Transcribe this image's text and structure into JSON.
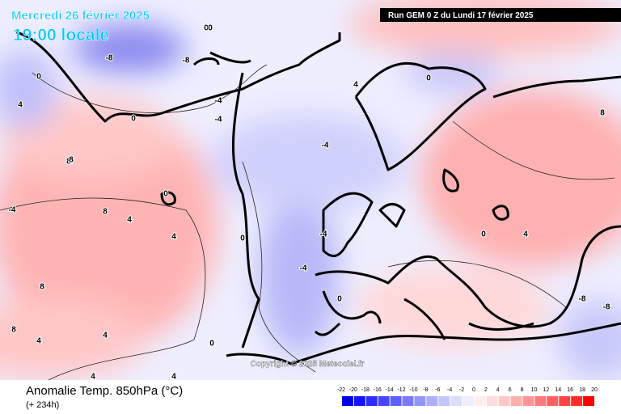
{
  "header": {
    "date": "Mercredi 26 février 2025",
    "time": "19:00 locale",
    "run": "Run GEM 0 Z du Lundi 17 février 2025"
  },
  "copyright": "Copyright © 2025 Meteociel.fr",
  "footer": {
    "title": "Anomalie Temp. 850hPa (°C)",
    "lead": "(+ 234h)"
  },
  "legend": {
    "labels": [
      -22,
      -20,
      -18,
      -16,
      -14,
      -12,
      -10,
      -8,
      -6,
      -4,
      -2,
      0,
      2,
      4,
      6,
      8,
      10,
      12,
      14,
      16,
      18,
      20
    ],
    "colors": [
      "#0000e6",
      "#1414ff",
      "#2c2cff",
      "#4646ff",
      "#6060ff",
      "#7a7aff",
      "#9494ff",
      "#aeaeff",
      "#c6c6ff",
      "#dcdcff",
      "#eeeeff",
      "#ffeeee",
      "#ffdcdc",
      "#ffc6c6",
      "#ffaeae",
      "#ff9494",
      "#ff7a7a",
      "#ff6060",
      "#ff4646",
      "#ff2c2c",
      "#ff0000"
    ]
  },
  "contour_labels": [
    "0",
    "-8",
    "-8",
    "0",
    "0",
    "4",
    "8",
    "0",
    "-4",
    "-4",
    "4",
    "0",
    "-4",
    "8",
    "-4",
    "8",
    "4",
    "8",
    "4",
    "-4",
    "0",
    "0",
    "4",
    "8",
    "-8",
    "-8",
    "4",
    "0",
    "0",
    "-4",
    "4",
    "8",
    "0",
    "4",
    "4"
  ]
}
